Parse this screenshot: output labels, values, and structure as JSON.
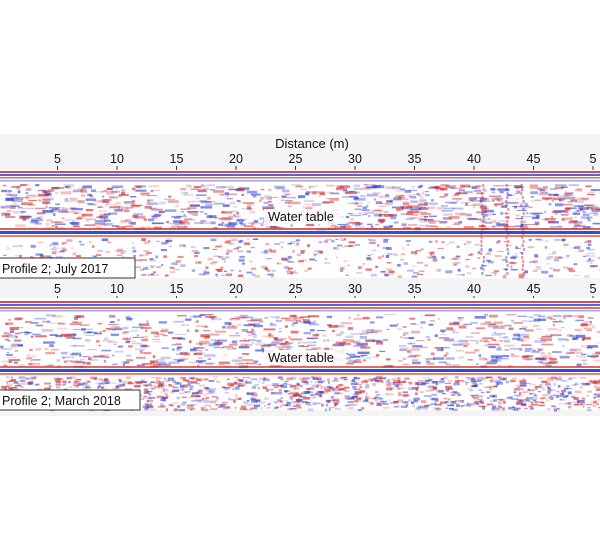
{
  "figure": {
    "axis_title": "Distance (m)",
    "axis_ticks": [
      "5",
      "10",
      "15",
      "20",
      "25",
      "30",
      "35",
      "40",
      "45",
      "5"
    ],
    "panels": [
      {
        "label": "Profile 2; July 2017",
        "annotation": "Water table"
      },
      {
        "label": "Profile 2; March 2018",
        "annotation": "Water table"
      }
    ],
    "colors": {
      "positive": "#d42a2a",
      "negative": "#2a3fd0",
      "background": "#ffffff"
    }
  }
}
